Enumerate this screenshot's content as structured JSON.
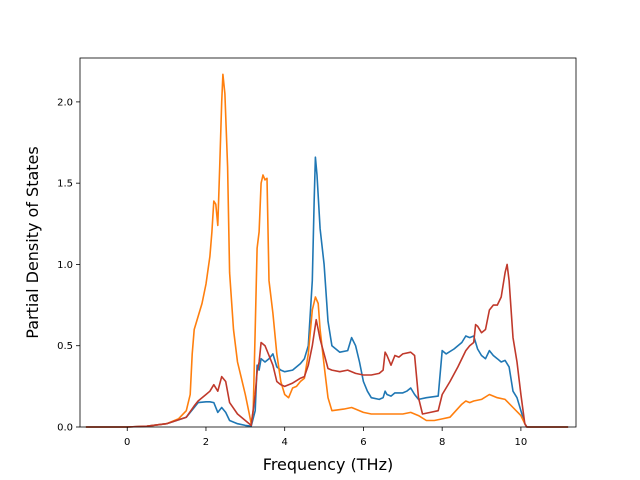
{
  "chart_data": {
    "type": "line",
    "title": "",
    "xlabel": "Frequency (THz)",
    "ylabel": "Partial Density of States",
    "xlim": [
      -1.2,
      11.4
    ],
    "ylim": [
      0,
      2.27
    ],
    "xticks": [
      0,
      2,
      4,
      6,
      8,
      10
    ],
    "yticks": [
      0.0,
      0.5,
      1.0,
      1.5,
      2.0
    ],
    "xtick_labels": [
      "0",
      "2",
      "4",
      "6",
      "8",
      "10"
    ],
    "ytick_labels": [
      "0.0",
      "0.5",
      "1.0",
      "1.5",
      "2.0"
    ],
    "grid": false,
    "legend": "none",
    "series": [
      {
        "color": "#1f77b4",
        "points": [
          [
            -1.05,
            0
          ],
          [
            0,
            0
          ],
          [
            0.5,
            0.005
          ],
          [
            1.0,
            0.02
          ],
          [
            1.5,
            0.06
          ],
          [
            1.7,
            0.12
          ],
          [
            1.8,
            0.15
          ],
          [
            2.0,
            0.155
          ],
          [
            2.1,
            0.155
          ],
          [
            2.2,
            0.15
          ],
          [
            2.3,
            0.09
          ],
          [
            2.4,
            0.12
          ],
          [
            2.5,
            0.09
          ],
          [
            2.6,
            0.04
          ],
          [
            2.8,
            0.02
          ],
          [
            3.0,
            0.01
          ],
          [
            3.15,
            0.005
          ],
          [
            3.25,
            0.1
          ],
          [
            3.3,
            0.38
          ],
          [
            3.35,
            0.35
          ],
          [
            3.4,
            0.42
          ],
          [
            3.5,
            0.4
          ],
          [
            3.6,
            0.42
          ],
          [
            3.7,
            0.45
          ],
          [
            3.8,
            0.37
          ],
          [
            3.9,
            0.35
          ],
          [
            4.0,
            0.34
          ],
          [
            4.2,
            0.35
          ],
          [
            4.4,
            0.39
          ],
          [
            4.5,
            0.42
          ],
          [
            4.6,
            0.5
          ],
          [
            4.7,
            0.9
          ],
          [
            4.75,
            1.4
          ],
          [
            4.78,
            1.66
          ],
          [
            4.82,
            1.55
          ],
          [
            4.9,
            1.22
          ],
          [
            5.0,
            1.0
          ],
          [
            5.1,
            0.65
          ],
          [
            5.2,
            0.5
          ],
          [
            5.4,
            0.46
          ],
          [
            5.6,
            0.47
          ],
          [
            5.7,
            0.55
          ],
          [
            5.8,
            0.5
          ],
          [
            5.9,
            0.4
          ],
          [
            6.0,
            0.28
          ],
          [
            6.1,
            0.22
          ],
          [
            6.2,
            0.18
          ],
          [
            6.4,
            0.17
          ],
          [
            6.5,
            0.18
          ],
          [
            6.55,
            0.22
          ],
          [
            6.6,
            0.2
          ],
          [
            6.7,
            0.19
          ],
          [
            6.8,
            0.21
          ],
          [
            7.0,
            0.21
          ],
          [
            7.1,
            0.22
          ],
          [
            7.2,
            0.24
          ],
          [
            7.3,
            0.2
          ],
          [
            7.4,
            0.17
          ],
          [
            7.6,
            0.18
          ],
          [
            7.9,
            0.19
          ],
          [
            8.0,
            0.47
          ],
          [
            8.1,
            0.45
          ],
          [
            8.3,
            0.48
          ],
          [
            8.5,
            0.52
          ],
          [
            8.6,
            0.56
          ],
          [
            8.7,
            0.55
          ],
          [
            8.8,
            0.56
          ],
          [
            8.9,
            0.48
          ],
          [
            9.0,
            0.44
          ],
          [
            9.1,
            0.42
          ],
          [
            9.2,
            0.47
          ],
          [
            9.3,
            0.44
          ],
          [
            9.4,
            0.42
          ],
          [
            9.5,
            0.4
          ],
          [
            9.6,
            0.41
          ],
          [
            9.7,
            0.37
          ],
          [
            9.8,
            0.22
          ],
          [
            9.9,
            0.18
          ],
          [
            10.0,
            0.1
          ],
          [
            10.1,
            0.02
          ],
          [
            10.15,
            0
          ],
          [
            11.2,
            0
          ]
        ]
      },
      {
        "color": "#ff7f0e",
        "points": [
          [
            -1.05,
            0
          ],
          [
            0,
            0
          ],
          [
            0.5,
            0.005
          ],
          [
            1.0,
            0.02
          ],
          [
            1.3,
            0.05
          ],
          [
            1.5,
            0.1
          ],
          [
            1.6,
            0.2
          ],
          [
            1.65,
            0.45
          ],
          [
            1.7,
            0.6
          ],
          [
            1.8,
            0.68
          ],
          [
            1.9,
            0.76
          ],
          [
            2.0,
            0.88
          ],
          [
            2.1,
            1.05
          ],
          [
            2.15,
            1.2
          ],
          [
            2.2,
            1.39
          ],
          [
            2.25,
            1.37
          ],
          [
            2.3,
            1.24
          ],
          [
            2.35,
            1.6
          ],
          [
            2.4,
            2.0
          ],
          [
            2.43,
            2.17
          ],
          [
            2.48,
            2.05
          ],
          [
            2.55,
            1.6
          ],
          [
            2.6,
            0.95
          ],
          [
            2.7,
            0.6
          ],
          [
            2.8,
            0.4
          ],
          [
            2.9,
            0.3
          ],
          [
            3.0,
            0.2
          ],
          [
            3.1,
            0.08
          ],
          [
            3.15,
            0.02
          ],
          [
            3.2,
            0.1
          ],
          [
            3.25,
            0.6
          ],
          [
            3.3,
            1.1
          ],
          [
            3.35,
            1.2
          ],
          [
            3.4,
            1.5
          ],
          [
            3.45,
            1.55
          ],
          [
            3.5,
            1.52
          ],
          [
            3.55,
            1.53
          ],
          [
            3.6,
            0.9
          ],
          [
            3.7,
            0.7
          ],
          [
            3.8,
            0.45
          ],
          [
            3.9,
            0.28
          ],
          [
            4.0,
            0.2
          ],
          [
            4.1,
            0.18
          ],
          [
            4.2,
            0.24
          ],
          [
            4.3,
            0.25
          ],
          [
            4.4,
            0.28
          ],
          [
            4.5,
            0.3
          ],
          [
            4.6,
            0.45
          ],
          [
            4.7,
            0.72
          ],
          [
            4.78,
            0.8
          ],
          [
            4.85,
            0.76
          ],
          [
            4.9,
            0.6
          ],
          [
            5.0,
            0.38
          ],
          [
            5.1,
            0.18
          ],
          [
            5.2,
            0.1
          ],
          [
            5.5,
            0.11
          ],
          [
            5.7,
            0.12
          ],
          [
            5.8,
            0.11
          ],
          [
            6.0,
            0.09
          ],
          [
            6.2,
            0.08
          ],
          [
            6.5,
            0.08
          ],
          [
            7.0,
            0.08
          ],
          [
            7.2,
            0.09
          ],
          [
            7.4,
            0.07
          ],
          [
            7.6,
            0.04
          ],
          [
            7.8,
            0.04
          ],
          [
            8.0,
            0.05
          ],
          [
            8.2,
            0.06
          ],
          [
            8.5,
            0.14
          ],
          [
            8.6,
            0.16
          ],
          [
            8.7,
            0.15
          ],
          [
            8.8,
            0.16
          ],
          [
            9.0,
            0.17
          ],
          [
            9.2,
            0.2
          ],
          [
            9.4,
            0.18
          ],
          [
            9.6,
            0.17
          ],
          [
            9.8,
            0.12
          ],
          [
            10.0,
            0.07
          ],
          [
            10.1,
            0.02
          ],
          [
            10.15,
            0
          ],
          [
            11.2,
            0
          ]
        ]
      },
      {
        "color": "#c0392b",
        "points": [
          [
            -1.05,
            0
          ],
          [
            0,
            0
          ],
          [
            0.5,
            0.005
          ],
          [
            1.0,
            0.02
          ],
          [
            1.5,
            0.06
          ],
          [
            1.7,
            0.13
          ],
          [
            1.8,
            0.16
          ],
          [
            2.0,
            0.2
          ],
          [
            2.1,
            0.22
          ],
          [
            2.2,
            0.26
          ],
          [
            2.3,
            0.22
          ],
          [
            2.4,
            0.31
          ],
          [
            2.5,
            0.28
          ],
          [
            2.6,
            0.15
          ],
          [
            2.8,
            0.08
          ],
          [
            3.0,
            0.04
          ],
          [
            3.15,
            0.01
          ],
          [
            3.25,
            0.2
          ],
          [
            3.3,
            0.34
          ],
          [
            3.35,
            0.4
          ],
          [
            3.4,
            0.52
          ],
          [
            3.5,
            0.5
          ],
          [
            3.6,
            0.44
          ],
          [
            3.7,
            0.38
          ],
          [
            3.8,
            0.28
          ],
          [
            3.9,
            0.26
          ],
          [
            4.0,
            0.25
          ],
          [
            4.2,
            0.27
          ],
          [
            4.4,
            0.3
          ],
          [
            4.5,
            0.31
          ],
          [
            4.6,
            0.38
          ],
          [
            4.7,
            0.5
          ],
          [
            4.8,
            0.66
          ],
          [
            4.85,
            0.6
          ],
          [
            4.9,
            0.54
          ],
          [
            5.0,
            0.45
          ],
          [
            5.1,
            0.36
          ],
          [
            5.2,
            0.35
          ],
          [
            5.4,
            0.34
          ],
          [
            5.6,
            0.35
          ],
          [
            5.8,
            0.33
          ],
          [
            6.0,
            0.32
          ],
          [
            6.2,
            0.32
          ],
          [
            6.4,
            0.33
          ],
          [
            6.5,
            0.35
          ],
          [
            6.55,
            0.46
          ],
          [
            6.6,
            0.44
          ],
          [
            6.7,
            0.38
          ],
          [
            6.8,
            0.44
          ],
          [
            6.9,
            0.43
          ],
          [
            7.0,
            0.45
          ],
          [
            7.2,
            0.46
          ],
          [
            7.3,
            0.44
          ],
          [
            7.4,
            0.18
          ],
          [
            7.5,
            0.08
          ],
          [
            7.7,
            0.09
          ],
          [
            7.9,
            0.1
          ],
          [
            8.0,
            0.2
          ],
          [
            8.2,
            0.28
          ],
          [
            8.4,
            0.37
          ],
          [
            8.6,
            0.47
          ],
          [
            8.7,
            0.5
          ],
          [
            8.8,
            0.52
          ],
          [
            8.85,
            0.63
          ],
          [
            8.9,
            0.62
          ],
          [
            9.0,
            0.58
          ],
          [
            9.1,
            0.6
          ],
          [
            9.2,
            0.72
          ],
          [
            9.3,
            0.75
          ],
          [
            9.4,
            0.75
          ],
          [
            9.5,
            0.8
          ],
          [
            9.6,
            0.95
          ],
          [
            9.65,
            1.0
          ],
          [
            9.7,
            0.9
          ],
          [
            9.8,
            0.55
          ],
          [
            9.9,
            0.4
          ],
          [
            10.0,
            0.2
          ],
          [
            10.1,
            0.02
          ],
          [
            10.15,
            0
          ],
          [
            11.2,
            0
          ]
        ]
      }
    ]
  }
}
